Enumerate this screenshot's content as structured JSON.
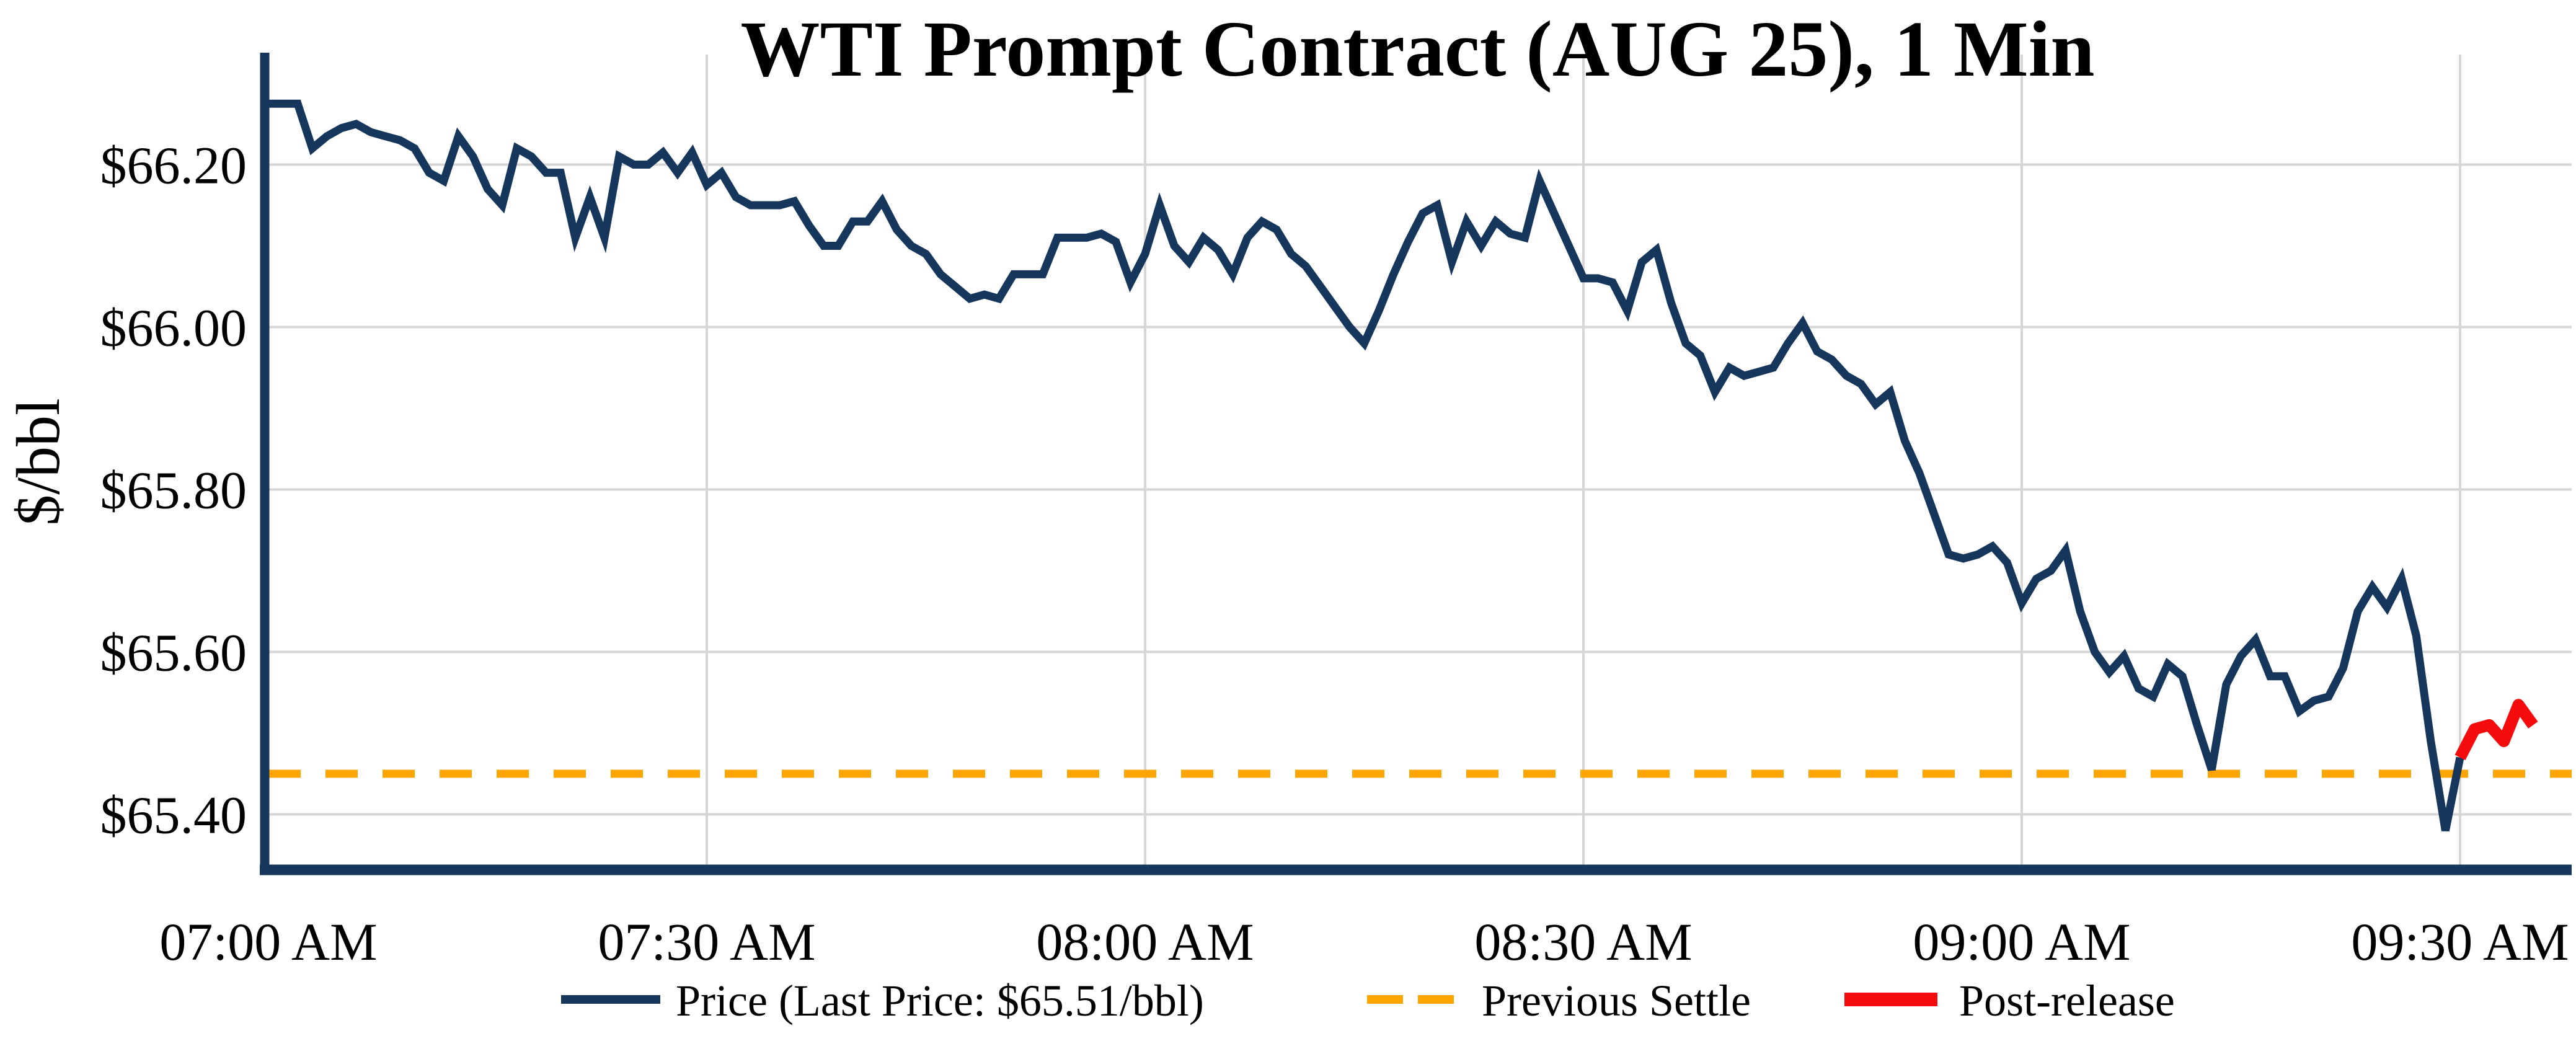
{
  "page": {
    "background": "#ffffff"
  },
  "chart_data": {
    "type": "line",
    "title": "WTI Prompt Contract (AUG 25), 1 Min",
    "xlabel": "",
    "ylabel": "$/bbl",
    "grid": true,
    "legend_position": "bottom-center",
    "colors": {
      "price_line": "#16365c",
      "settle_line": "#ffa500",
      "post_release_line": "#f40b0b",
      "gridline": "#d6d6d6",
      "axis_spine": "#16365c"
    },
    "ylim": [
      65.334,
      66.334
    ],
    "xlim_minutes": [
      0,
      157.3
    ],
    "x_start_label": "07:00 AM",
    "x_interval_minutes": 1,
    "x_ticks": [
      {
        "label": "07:00 AM",
        "minute": 0
      },
      {
        "label": "07:30 AM",
        "minute": 30
      },
      {
        "label": "08:00 AM",
        "minute": 60
      },
      {
        "label": "08:30 AM",
        "minute": 90
      },
      {
        "label": "09:00 AM",
        "minute": 120
      },
      {
        "label": "09:30 AM",
        "minute": 150
      }
    ],
    "y_ticks": [
      {
        "label": "$66.20",
        "value": 66.2
      },
      {
        "label": "$66.00",
        "value": 66.0
      },
      {
        "label": "$65.80",
        "value": 65.8
      },
      {
        "label": "$65.60",
        "value": 65.6
      },
      {
        "label": "$65.40",
        "value": 65.4
      }
    ],
    "previous_settle": {
      "value": 65.45
    },
    "last_price": 65.51,
    "series": [
      {
        "name": "Price",
        "color": "#16365c",
        "start_minute": 0,
        "interval_minutes": 1,
        "values": [
          66.275,
          66.275,
          66.275,
          66.22,
          66.235,
          66.245,
          66.25,
          66.24,
          66.235,
          66.23,
          66.22,
          66.19,
          66.18,
          66.235,
          66.21,
          66.17,
          66.15,
          66.22,
          66.21,
          66.19,
          66.19,
          66.11,
          66.16,
          66.11,
          66.21,
          66.2,
          66.2,
          66.215,
          66.19,
          66.215,
          66.175,
          66.19,
          66.16,
          66.15,
          66.15,
          66.15,
          66.155,
          66.125,
          66.1,
          66.1,
          66.13,
          66.13,
          66.155,
          66.12,
          66.1,
          66.09,
          66.065,
          66.05,
          66.035,
          66.04,
          66.035,
          66.065,
          66.065,
          66.065,
          66.11,
          66.11,
          66.11,
          66.115,
          66.105,
          66.055,
          66.09,
          66.15,
          66.1,
          66.08,
          66.11,
          66.095,
          66.065,
          66.11,
          66.13,
          66.12,
          66.09,
          66.075,
          66.05,
          66.025,
          66.0,
          65.98,
          66.02,
          66.065,
          66.105,
          66.14,
          66.15,
          66.08,
          66.13,
          66.1,
          66.13,
          66.115,
          66.11,
          66.18,
          66.14,
          66.1,
          66.06,
          66.06,
          66.055,
          66.02,
          66.08,
          66.095,
          66.03,
          65.98,
          65.965,
          65.92,
          65.95,
          65.94,
          65.945,
          65.95,
          65.98,
          66.005,
          65.97,
          65.96,
          65.94,
          65.93,
          65.905,
          65.92,
          65.86,
          65.82,
          65.77,
          65.72,
          65.715,
          65.72,
          65.73,
          65.71,
          65.66,
          65.69,
          65.7,
          65.725,
          65.65,
          65.6,
          65.575,
          65.595,
          65.555,
          65.545,
          65.585,
          65.57,
          65.51,
          65.455,
          65.56,
          65.595,
          65.615,
          65.57,
          65.57,
          65.527,
          65.54,
          65.545,
          65.58,
          65.65,
          65.68,
          65.655,
          65.69,
          65.62,
          65.49,
          65.38,
          65.47
        ]
      },
      {
        "name": "Post-release",
        "color": "#f40b0b",
        "start_minute": 150,
        "interval_minutes": 1,
        "values": [
          65.47,
          65.505,
          65.51,
          65.49,
          65.535,
          65.51
        ]
      }
    ],
    "legend": {
      "items": [
        {
          "label": "Price (Last Price: $65.51/bbl)",
          "style": "solid",
          "color": "#16365c"
        },
        {
          "label": "Previous Settle",
          "style": "dashed",
          "color": "#ffa500"
        },
        {
          "label": "Post-release",
          "style": "thick",
          "color": "#f40b0b"
        }
      ]
    }
  }
}
